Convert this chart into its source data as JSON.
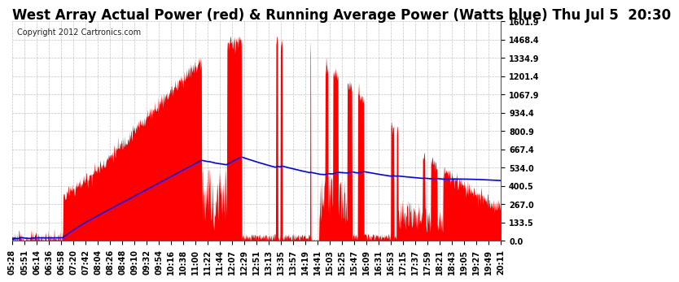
{
  "title": "West Array Actual Power (red) & Running Average Power (Watts blue) Thu Jul 5  20:30",
  "copyright": "Copyright 2012 Cartronics.com",
  "background_color": "#ffffff",
  "grid_color": "#aaaaaa",
  "fill_color": "#ff0000",
  "line_color": "#0000ff",
  "ylim": [
    0.0,
    1601.9
  ],
  "yticks": [
    0.0,
    133.5,
    267.0,
    400.5,
    534.0,
    667.4,
    800.9,
    934.4,
    1067.9,
    1201.4,
    1334.9,
    1468.4,
    1601.9
  ],
  "xtick_labels": [
    "05:28",
    "05:51",
    "06:14",
    "06:36",
    "06:58",
    "07:20",
    "07:42",
    "08:04",
    "08:26",
    "08:48",
    "09:10",
    "09:32",
    "09:54",
    "10:16",
    "10:38",
    "11:00",
    "11:22",
    "11:44",
    "12:07",
    "12:29",
    "12:51",
    "13:13",
    "13:35",
    "13:57",
    "14:19",
    "14:41",
    "15:03",
    "15:25",
    "15:47",
    "16:09",
    "16:31",
    "16:53",
    "17:15",
    "17:37",
    "17:59",
    "18:21",
    "18:43",
    "19:05",
    "19:27",
    "19:49",
    "20:11"
  ],
  "title_fontsize": 12,
  "tick_fontsize": 7,
  "copyright_fontsize": 7,
  "n_points": 1200
}
